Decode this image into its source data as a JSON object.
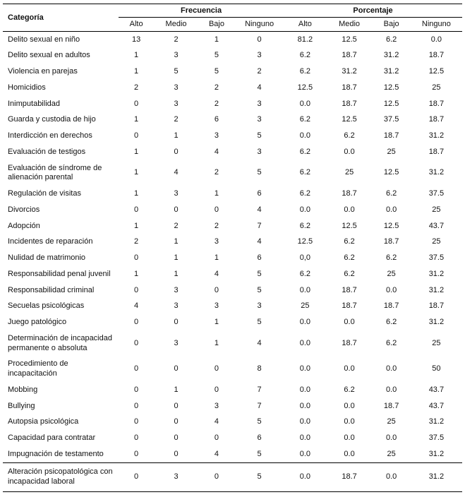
{
  "table": {
    "category_header": "Categoría",
    "groups": [
      "Frecuencia",
      "Porcentaje"
    ],
    "sub_headers": [
      "Alto",
      "Medio",
      "Bajo",
      "Ninguno",
      "Alto",
      "Medio",
      "Bajo",
      "Ninguno"
    ],
    "rows": [
      {
        "category": "Delito sexual en niño",
        "values": [
          "13",
          "2",
          "1",
          "0",
          "81.2",
          "12.5",
          "6.2",
          "0.0"
        ]
      },
      {
        "category": "Delito sexual en adultos",
        "values": [
          "1",
          "3",
          "5",
          "3",
          "6.2",
          "18.7",
          "31.2",
          "18.7"
        ]
      },
      {
        "category": "Violencia en parejas",
        "values": [
          "1",
          "5",
          "5",
          "2",
          "6.2",
          "31.2",
          "31.2",
          "12.5"
        ]
      },
      {
        "category": "Homicidios",
        "values": [
          "2",
          "3",
          "2",
          "4",
          "12.5",
          "18.7",
          "12.5",
          "25"
        ]
      },
      {
        "category": "Inimputabilidad",
        "values": [
          "0",
          "3",
          "2",
          "3",
          "0.0",
          "18.7",
          "12.5",
          "18.7"
        ]
      },
      {
        "category": "Guarda y custodia de hijo",
        "values": [
          "1",
          "2",
          "6",
          "3",
          "6.2",
          "12.5",
          "37.5",
          "18.7"
        ]
      },
      {
        "category": "Interdicción en derechos",
        "values": [
          "0",
          "1",
          "3",
          "5",
          "0.0",
          "6.2",
          "18.7",
          "31.2"
        ]
      },
      {
        "category": "Evaluación de testigos",
        "values": [
          "1",
          "0",
          "4",
          "3",
          "6.2",
          "0.0",
          "25",
          "18.7"
        ]
      },
      {
        "category": "Evaluación de síndrome de alienación parental",
        "values": [
          "1",
          "4",
          "2",
          "5",
          "6.2",
          "25",
          "12.5",
          "31.2"
        ]
      },
      {
        "category": "Regulación de visitas",
        "values": [
          "1",
          "3",
          "1",
          "6",
          "6.2",
          "18.7",
          "6.2",
          "37.5"
        ]
      },
      {
        "category": "Divorcios",
        "values": [
          "0",
          "0",
          "0",
          "4",
          "0.0",
          "0.0",
          "0.0",
          "25"
        ]
      },
      {
        "category": "Adopción",
        "values": [
          "1",
          "2",
          "2",
          "7",
          "6.2",
          "12.5",
          "12.5",
          "43.7"
        ]
      },
      {
        "category": "Incidentes de reparación",
        "values": [
          "2",
          "1",
          "3",
          "4",
          "12.5",
          "6.2",
          "18.7",
          "25"
        ]
      },
      {
        "category": "Nulidad de matrimonio",
        "values": [
          "0",
          "1",
          "1",
          "6",
          "0,0",
          "6.2",
          "6.2",
          "37.5"
        ]
      },
      {
        "category": "Responsabilidad penal juvenil",
        "values": [
          "1",
          "1",
          "4",
          "5",
          "6.2",
          "6.2",
          "25",
          "31.2"
        ]
      },
      {
        "category": "Responsabilidad criminal",
        "values": [
          "0",
          "3",
          "0",
          "5",
          "0.0",
          "18.7",
          "0.0",
          "31.2"
        ]
      },
      {
        "category": "Secuelas psicológicas",
        "values": [
          "4",
          "3",
          "3",
          "3",
          "25",
          "18.7",
          "18.7",
          "18.7"
        ]
      },
      {
        "category": "Juego patológico",
        "values": [
          "0",
          "0",
          "1",
          "5",
          "0.0",
          "0.0",
          "6.2",
          "31.2"
        ]
      },
      {
        "category": "Determinación de incapacidad permanente o absoluta",
        "values": [
          "0",
          "3",
          "1",
          "4",
          "0.0",
          "18.7",
          "6.2",
          "25"
        ]
      },
      {
        "category": "Procedimiento de incapacitación",
        "values": [
          "0",
          "0",
          "0",
          "8",
          "0.0",
          "0.0",
          "0.0",
          "50"
        ]
      },
      {
        "category": "Mobbing",
        "values": [
          "0",
          "1",
          "0",
          "7",
          "0.0",
          "6.2",
          "0.0",
          "43.7"
        ]
      },
      {
        "category": "Bullying",
        "values": [
          "0",
          "0",
          "3",
          "7",
          "0.0",
          "0.0",
          "18.7",
          "43.7"
        ]
      },
      {
        "category": "Autopsia psicológica",
        "values": [
          "0",
          "0",
          "4",
          "5",
          "0.0",
          "0.0",
          "25",
          "31.2"
        ]
      },
      {
        "category": "Capacidad para contratar",
        "values": [
          "0",
          "0",
          "0",
          "6",
          "0.0",
          "0.0",
          "0.0",
          "37.5"
        ]
      },
      {
        "category": "Impugnación de testamento",
        "values": [
          "0",
          "0",
          "4",
          "5",
          "0.0",
          "0.0",
          "25",
          "31.2"
        ]
      }
    ],
    "footer_row": {
      "category": "Alteración psicopatológica con incapacidad laboral",
      "values": [
        "0",
        "3",
        "0",
        "5",
        "0.0",
        "18.7",
        "0.0",
        "31.2"
      ]
    }
  }
}
